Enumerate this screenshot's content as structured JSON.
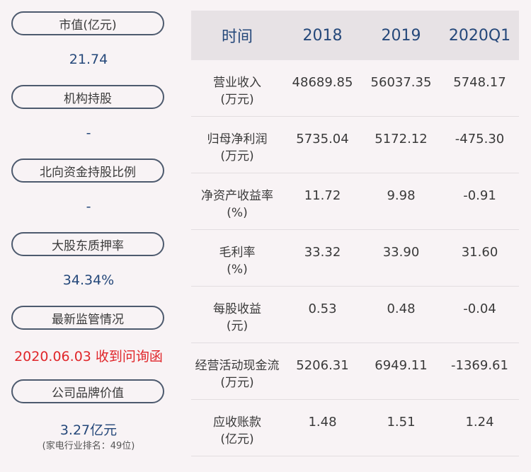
{
  "left": {
    "items": [
      {
        "label": "市值(亿元)",
        "value": "21.74"
      },
      {
        "label": "机构持股",
        "value": "-"
      },
      {
        "label": "北向资金持股比例",
        "value": "-"
      },
      {
        "label": "大股东质押率",
        "value": "34.34%"
      },
      {
        "label": "最新监管情况",
        "value": "2020.06.03 收到问询函"
      },
      {
        "label": "公司品牌价值",
        "value": "3.27亿元",
        "note": "(家电行业排名：49位)"
      }
    ]
  },
  "table": {
    "headers": [
      "时间",
      "2018",
      "2019",
      "2020Q1"
    ],
    "rows": [
      {
        "name": "营业收入",
        "unit": "(万元)",
        "values": [
          "48689.85",
          "56037.35",
          "5748.17"
        ]
      },
      {
        "name": "归母净利润",
        "unit": "(万元)",
        "values": [
          "5735.04",
          "5172.12",
          "-475.30"
        ]
      },
      {
        "name": "净资产收益率",
        "unit": "(%)",
        "values": [
          "11.72",
          "9.98",
          "-0.91"
        ]
      },
      {
        "name": "毛利率",
        "unit": "(%)",
        "values": [
          "33.32",
          "33.90",
          "31.60"
        ]
      },
      {
        "name": "每股收益",
        "unit": "(元)",
        "values": [
          "0.53",
          "0.48",
          "-0.04"
        ]
      },
      {
        "name": "经营活动现金流",
        "unit": "(万元)",
        "values": [
          "5206.31",
          "6949.11",
          "-1369.61"
        ]
      },
      {
        "name": "应收账款",
        "unit": "(亿元)",
        "values": [
          "1.48",
          "1.51",
          "1.24"
        ]
      }
    ]
  },
  "colors": {
    "label_text": "#3a3a3a",
    "value_blue": "#25487a",
    "value_red": "#e0262a",
    "header_bg": "#e7e2e5",
    "page_bg": "#f8f3f5",
    "pill_border": "#4d5a6e"
  }
}
